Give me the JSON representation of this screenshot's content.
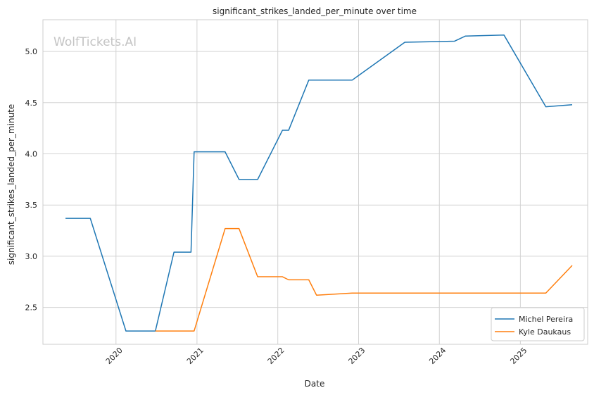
{
  "watermark": "WolfTickets.AI",
  "chart_data": {
    "type": "line",
    "title": "significant_strikes_landed_per_minute over time",
    "xlabel": "Date",
    "ylabel": "significant_strikes_landed_per_minute",
    "x_axis": "date",
    "xlim": [
      "2019-02-05",
      "2025-11-01"
    ],
    "ylim": [
      2.14,
      5.31
    ],
    "x_ticks": [
      "2020",
      "2021",
      "2022",
      "2023",
      "2024",
      "2025"
    ],
    "y_ticks": [
      "2.5",
      "3.0",
      "3.5",
      "4.0",
      "4.5",
      "5.0"
    ],
    "grid": true,
    "legend_position": "bottom-right",
    "series": [
      {
        "name": "Michel Pereira",
        "color": "#1f77b4",
        "points": [
          [
            "2019-05-18",
            3.37
          ],
          [
            "2019-09-07",
            3.37
          ],
          [
            "2020-02-15",
            2.27
          ],
          [
            "2020-06-27",
            2.27
          ],
          [
            "2020-09-19",
            3.04
          ],
          [
            "2020-12-05",
            3.04
          ],
          [
            "2020-12-19",
            4.02
          ],
          [
            "2021-05-08",
            4.02
          ],
          [
            "2021-07-10",
            3.75
          ],
          [
            "2021-10-02",
            3.75
          ],
          [
            "2022-01-22",
            4.23
          ],
          [
            "2022-02-19",
            4.23
          ],
          [
            "2022-05-21",
            4.72
          ],
          [
            "2022-12-03",
            4.72
          ],
          [
            "2023-07-29",
            5.09
          ],
          [
            "2024-03-09",
            5.1
          ],
          [
            "2024-04-27",
            5.15
          ],
          [
            "2024-10-19",
            5.16
          ],
          [
            "2025-04-26",
            4.46
          ],
          [
            "2025-08-23",
            4.48
          ]
        ]
      },
      {
        "name": "Kyle Daukaus",
        "color": "#ff7f0e",
        "points": [
          [
            "2020-06-27",
            2.27
          ],
          [
            "2020-12-19",
            2.27
          ],
          [
            "2021-05-08",
            3.27
          ],
          [
            "2021-07-10",
            3.27
          ],
          [
            "2021-10-02",
            2.8
          ],
          [
            "2022-01-22",
            2.8
          ],
          [
            "2022-02-19",
            2.77
          ],
          [
            "2022-05-21",
            2.77
          ],
          [
            "2022-06-25",
            2.62
          ],
          [
            "2022-12-03",
            2.64
          ],
          [
            "2025-04-26",
            2.64
          ],
          [
            "2025-08-23",
            2.91
          ]
        ]
      }
    ]
  }
}
